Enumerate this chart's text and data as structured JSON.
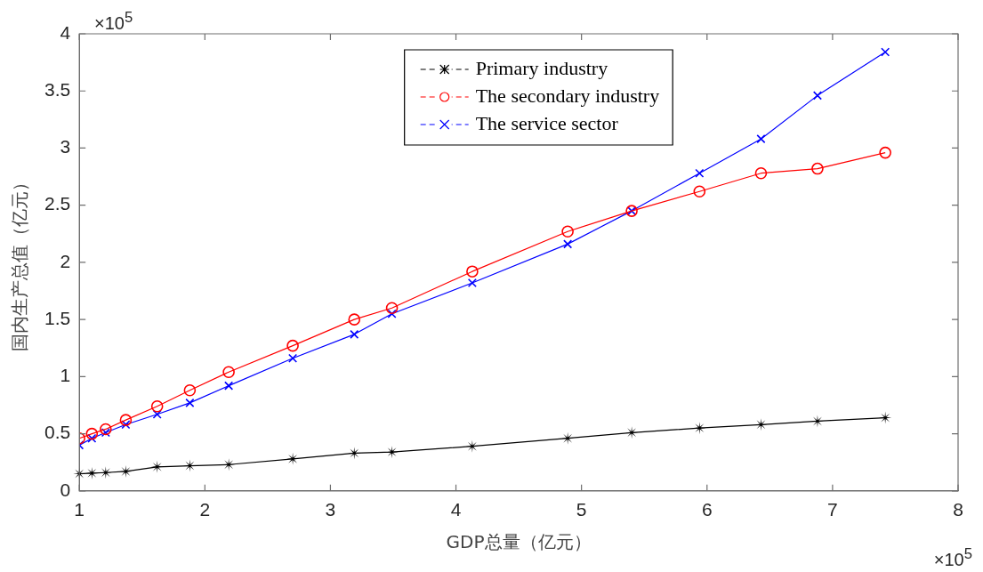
{
  "chart_data": {
    "type": "line",
    "xlabel": "GDP总量（亿元）",
    "ylabel": "国内生产总值（亿元）",
    "x": [
      1.0,
      1.1,
      1.21,
      1.37,
      1.62,
      1.88,
      2.19,
      2.7,
      3.19,
      3.49,
      4.13,
      4.89,
      5.4,
      5.94,
      6.43,
      6.88,
      7.42
    ],
    "series": [
      {
        "name": "Primary industry",
        "color": "#000000",
        "marker": "star",
        "values": [
          0.15,
          0.155,
          0.16,
          0.17,
          0.21,
          0.22,
          0.23,
          0.28,
          0.33,
          0.34,
          0.39,
          0.46,
          0.51,
          0.55,
          0.58,
          0.61,
          0.64
        ]
      },
      {
        "name": "The secondary industry",
        "color": "#ff0000",
        "marker": "circle",
        "values": [
          0.46,
          0.5,
          0.54,
          0.62,
          0.74,
          0.88,
          1.04,
          1.27,
          1.5,
          1.6,
          1.92,
          2.27,
          2.45,
          2.62,
          2.78,
          2.82,
          2.96
        ]
      },
      {
        "name": "The service sector",
        "color": "#0000ff",
        "marker": "cross",
        "values": [
          0.4,
          0.46,
          0.51,
          0.58,
          0.67,
          0.77,
          0.92,
          1.16,
          1.37,
          1.55,
          1.82,
          2.16,
          2.45,
          2.78,
          3.08,
          3.46,
          3.84
        ]
      }
    ],
    "xlim": [
      1,
      8
    ],
    "xticks": [
      1,
      2,
      3,
      4,
      5,
      6,
      7,
      8
    ],
    "ylim": [
      0,
      4
    ],
    "yticks": [
      0,
      0.5,
      1,
      1.5,
      2,
      2.5,
      3,
      3.5,
      4
    ],
    "annotations": [
      "×10$^{5}$",
      "×10$^{5}$"
    ],
    "legend": "top",
    "line_style": "solid"
  }
}
